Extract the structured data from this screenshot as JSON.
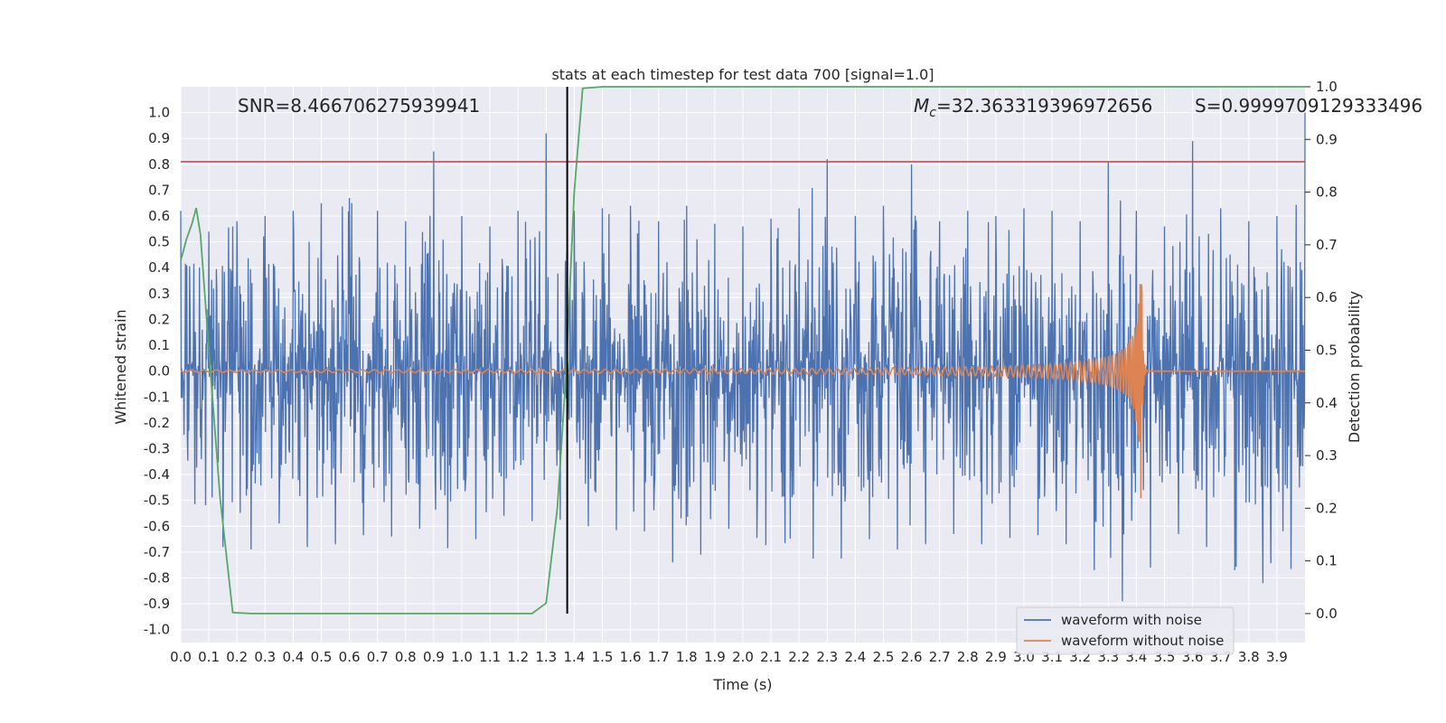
{
  "chart_data": {
    "type": "line",
    "title": "stats at each timestep for test data 700 [signal=1.0]",
    "xlabel": "Time (s)",
    "ylabel": "Whitened strain",
    "y2label": "Detection probability",
    "xlim": [
      0.0,
      4.0
    ],
    "ylim": [
      -1.05,
      1.1
    ],
    "y2lim": [
      -0.055,
      1.0
    ],
    "x_ticks": [
      "0.0",
      "0.1",
      "0.2",
      "0.3",
      "0.4",
      "0.5",
      "0.6",
      "0.7",
      "0.8",
      "0.9",
      "1.0",
      "1.1",
      "1.2",
      "1.3",
      "1.4",
      "1.5",
      "1.6",
      "1.7",
      "1.8",
      "1.9",
      "2.0",
      "2.1",
      "2.2",
      "2.3",
      "2.4",
      "2.5",
      "2.6",
      "2.7",
      "2.8",
      "2.9",
      "3.0",
      "3.1",
      "3.2",
      "3.3",
      "3.4",
      "3.5",
      "3.6",
      "3.7",
      "3.8",
      "3.9"
    ],
    "y_ticks": [
      "1.0",
      "0.9",
      "0.8",
      "0.7",
      "0.6",
      "0.5",
      "0.4",
      "0.3",
      "0.2",
      "0.1",
      "0.0",
      "-0.1",
      "-0.2",
      "-0.3",
      "-0.4",
      "-0.5",
      "-0.6",
      "-0.7",
      "-0.8",
      "-0.9",
      "-1.0"
    ],
    "y2_ticks": [
      "1.0",
      "0.9",
      "0.8",
      "0.7",
      "0.6",
      "0.5",
      "0.4",
      "0.3",
      "0.2",
      "0.1",
      "0.0"
    ],
    "grid": true,
    "legend_position": "lower-right",
    "annotations": {
      "snr": "SNR=8.466706275939941",
      "mc_symbol": "M",
      "mc_sub": "c",
      "mc_value": "=32.363319396972656",
      "s_value": "S=0.9999709129333496"
    },
    "threshold_line_y": 0.81,
    "vertical_marker_x": 1.375,
    "series": [
      {
        "name": "waveform with noise",
        "color": "#4c72b0",
        "envelope": {
          "x": [
            0.0,
            0.1,
            0.2,
            0.3,
            0.4,
            0.5,
            0.6,
            0.7,
            0.8,
            0.9,
            1.0,
            1.1,
            1.2,
            1.3,
            1.4,
            1.5,
            1.6,
            1.7,
            1.8,
            1.9,
            2.0,
            2.1,
            2.2,
            2.3,
            2.4,
            2.5,
            2.6,
            2.7,
            2.8,
            2.9,
            3.0,
            3.1,
            3.2,
            3.3,
            3.4,
            3.5,
            3.6,
            3.7,
            3.8,
            3.9,
            4.0
          ],
          "upper": [
            0.62,
            0.54,
            0.58,
            0.6,
            0.62,
            0.65,
            0.67,
            0.62,
            0.58,
            0.85,
            0.6,
            0.56,
            0.62,
            0.92,
            0.62,
            0.63,
            0.64,
            0.58,
            0.64,
            0.57,
            0.56,
            0.59,
            0.63,
            0.82,
            0.6,
            0.64,
            0.8,
            0.58,
            0.62,
            0.6,
            0.63,
            0.62,
            0.58,
            0.81,
            0.62,
            0.56,
            0.89,
            0.63,
            0.58,
            0.6,
            1.0
          ],
          "lower": [
            -0.45,
            -0.58,
            -0.78,
            -0.6,
            -0.58,
            -0.78,
            -0.56,
            -0.71,
            -0.57,
            -0.65,
            -0.72,
            -0.58,
            -0.54,
            -0.62,
            -0.53,
            -0.67,
            -0.56,
            -0.68,
            -0.8,
            -0.62,
            -0.6,
            -0.69,
            -0.64,
            -0.81,
            -0.64,
            -0.66,
            -0.72,
            -0.62,
            -0.64,
            -0.7,
            -0.59,
            -0.68,
            -0.66,
            -0.88,
            -0.9,
            -0.62,
            -0.64,
            -0.72,
            -0.82,
            -0.82,
            -0.71
          ]
        }
      },
      {
        "name": "waveform without noise",
        "color": "#dd8452",
        "chirp": {
          "t_merge": 3.42,
          "end_amplitude": 0.0
        }
      },
      {
        "name": "detection probability",
        "color": "#55a868",
        "axis": "right",
        "x": [
          0.0,
          0.02,
          0.04,
          0.055,
          0.07,
          0.1,
          0.14,
          0.185,
          0.25,
          0.5,
          1.0,
          1.25,
          1.3,
          1.34,
          1.37,
          1.4,
          1.43,
          1.5,
          2.0,
          2.5,
          3.0,
          3.5,
          4.0
        ],
        "values": [
          0.67,
          0.71,
          0.74,
          0.77,
          0.72,
          0.5,
          0.22,
          0.002,
          0.0,
          0.0,
          0.0,
          0.0,
          0.02,
          0.2,
          0.45,
          0.8,
          0.997,
          1.0,
          1.0,
          1.0,
          1.0,
          1.0,
          1.0
        ]
      }
    ],
    "horizontal_white_lines_y2": [
      0.6,
      0.5,
      0.4
    ]
  }
}
